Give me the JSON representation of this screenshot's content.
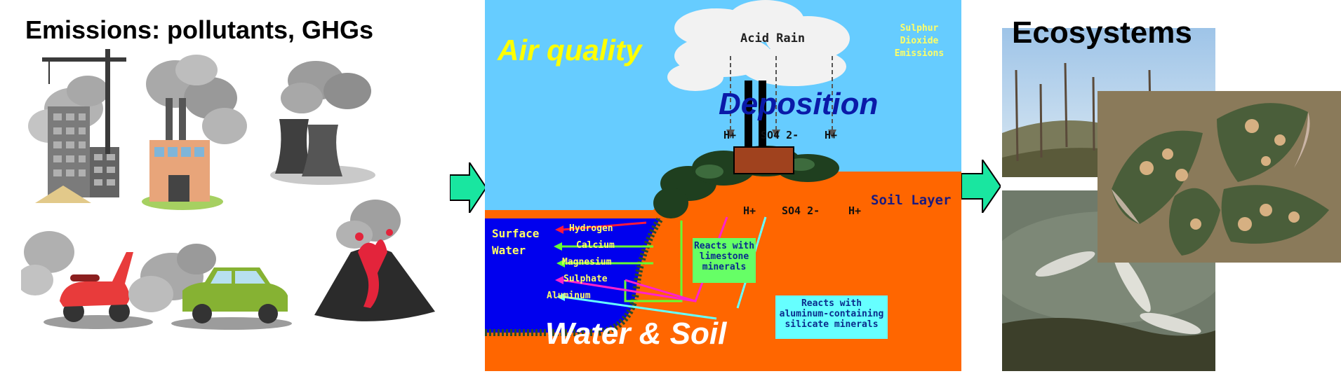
{
  "emissions": {
    "title": "Emissions: pollutants, GHGs",
    "icons": [
      "building-crane-icon",
      "factory-icon",
      "cooling-tower-icon",
      "scooter-icon",
      "car-icon",
      "volcano-icon"
    ]
  },
  "diagram": {
    "air_quality": "Air quality",
    "deposition": "Deposition",
    "water_soil": "Water & Soil",
    "acid_rain": "Acid Rain",
    "so2_emissions": [
      "Sulphur",
      "Dioxide",
      "Emissions"
    ],
    "sky_ions": [
      "H+",
      "SO4 2-",
      "H+"
    ],
    "soil_ions": [
      "H+",
      "SO4 2-",
      "H+"
    ],
    "soil_layer": "Soil Layer",
    "surface_water": [
      "Surface",
      "Water"
    ],
    "released": [
      "Hydrogen",
      "Calcium",
      "Magnesium",
      "Sulphate",
      "Aluminum"
    ],
    "limestone_note": [
      "Reacts with",
      "limestone",
      "minerals"
    ],
    "aluminum_note": [
      "Reacts with",
      "aluminum-containing",
      "silicate minerals"
    ]
  },
  "ecosystems": {
    "title": "Ecosystems",
    "photos": [
      "damaged-forest-photo",
      "damaged-leaves-photo",
      "dead-fish-photo"
    ]
  },
  "colors": {
    "arrow": "#19e6a0",
    "sky": "#66ccff",
    "soil": "#ff6600",
    "water": "#0000ee",
    "air_quality": "#ffff00",
    "deposition": "#0a1aa8",
    "note_limestone_bg": "#66ff66",
    "note_aluminum_bg": "#66ffff"
  }
}
